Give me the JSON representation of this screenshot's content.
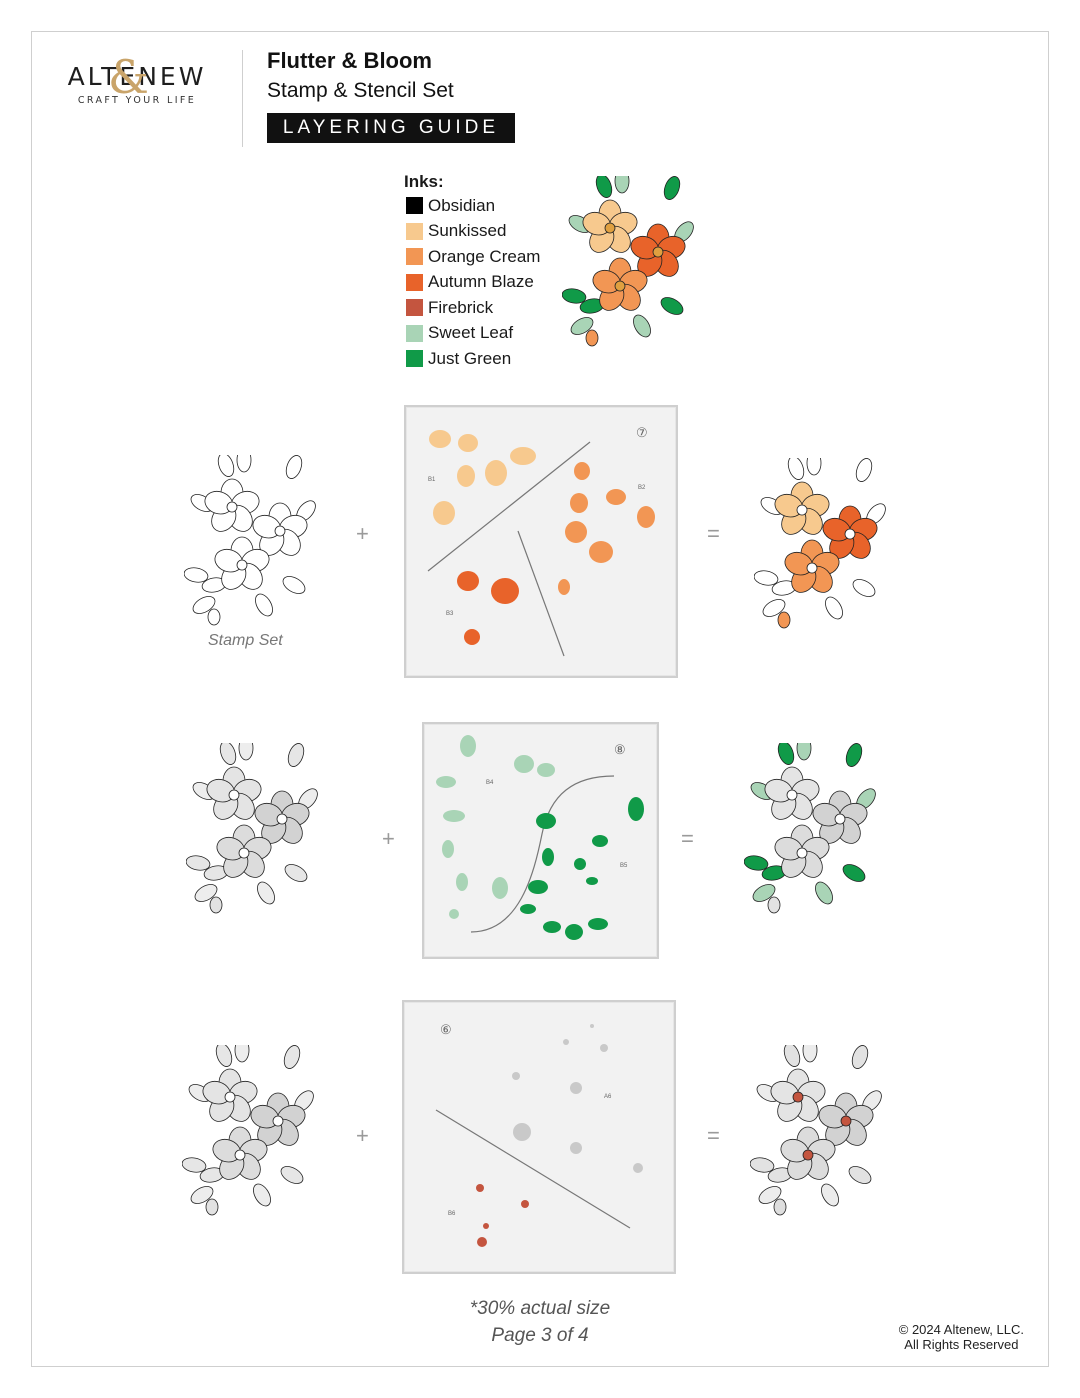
{
  "brand": {
    "name": "ALTENEW",
    "tagline": "CRAFT YOUR LIFE"
  },
  "header": {
    "title": "Flutter & Bloom",
    "subtitle": "Stamp & Stencil Set",
    "badge": "LAYERING GUIDE"
  },
  "inks": {
    "title": "Inks:",
    "items": [
      {
        "name": "Obsidian",
        "color": "#000000"
      },
      {
        "name": "Sunkissed",
        "color": "#f7c98e"
      },
      {
        "name": "Orange Cream",
        "color": "#f29654"
      },
      {
        "name": "Autumn Blaze",
        "color": "#e8632a"
      },
      {
        "name": "Firebrick",
        "color": "#c4553f"
      },
      {
        "name": "Sweet Leaf",
        "color": "#a9d4b6"
      },
      {
        "name": "Just Green",
        "color": "#109a48"
      }
    ]
  },
  "rows": [
    {
      "plus": "+",
      "equals": "=",
      "stencil_number": "⑦",
      "labels": [
        "B1",
        "B2",
        "B3"
      ]
    },
    {
      "plus": "+",
      "equals": "=",
      "stencil_number": "⑧",
      "labels": [
        "B4",
        "B5"
      ]
    },
    {
      "plus": "+",
      "equals": "=",
      "stencil_number": "⑥",
      "labels": [
        "A6",
        "B6"
      ]
    }
  ],
  "stamp_label": "Stamp Set",
  "footer": {
    "size_note": "*30% actual size",
    "page": "Page 3 of 4"
  },
  "copyright": {
    "line1": "© 2024 Altenew, LLC.",
    "line2": "All Rights Reserved"
  }
}
